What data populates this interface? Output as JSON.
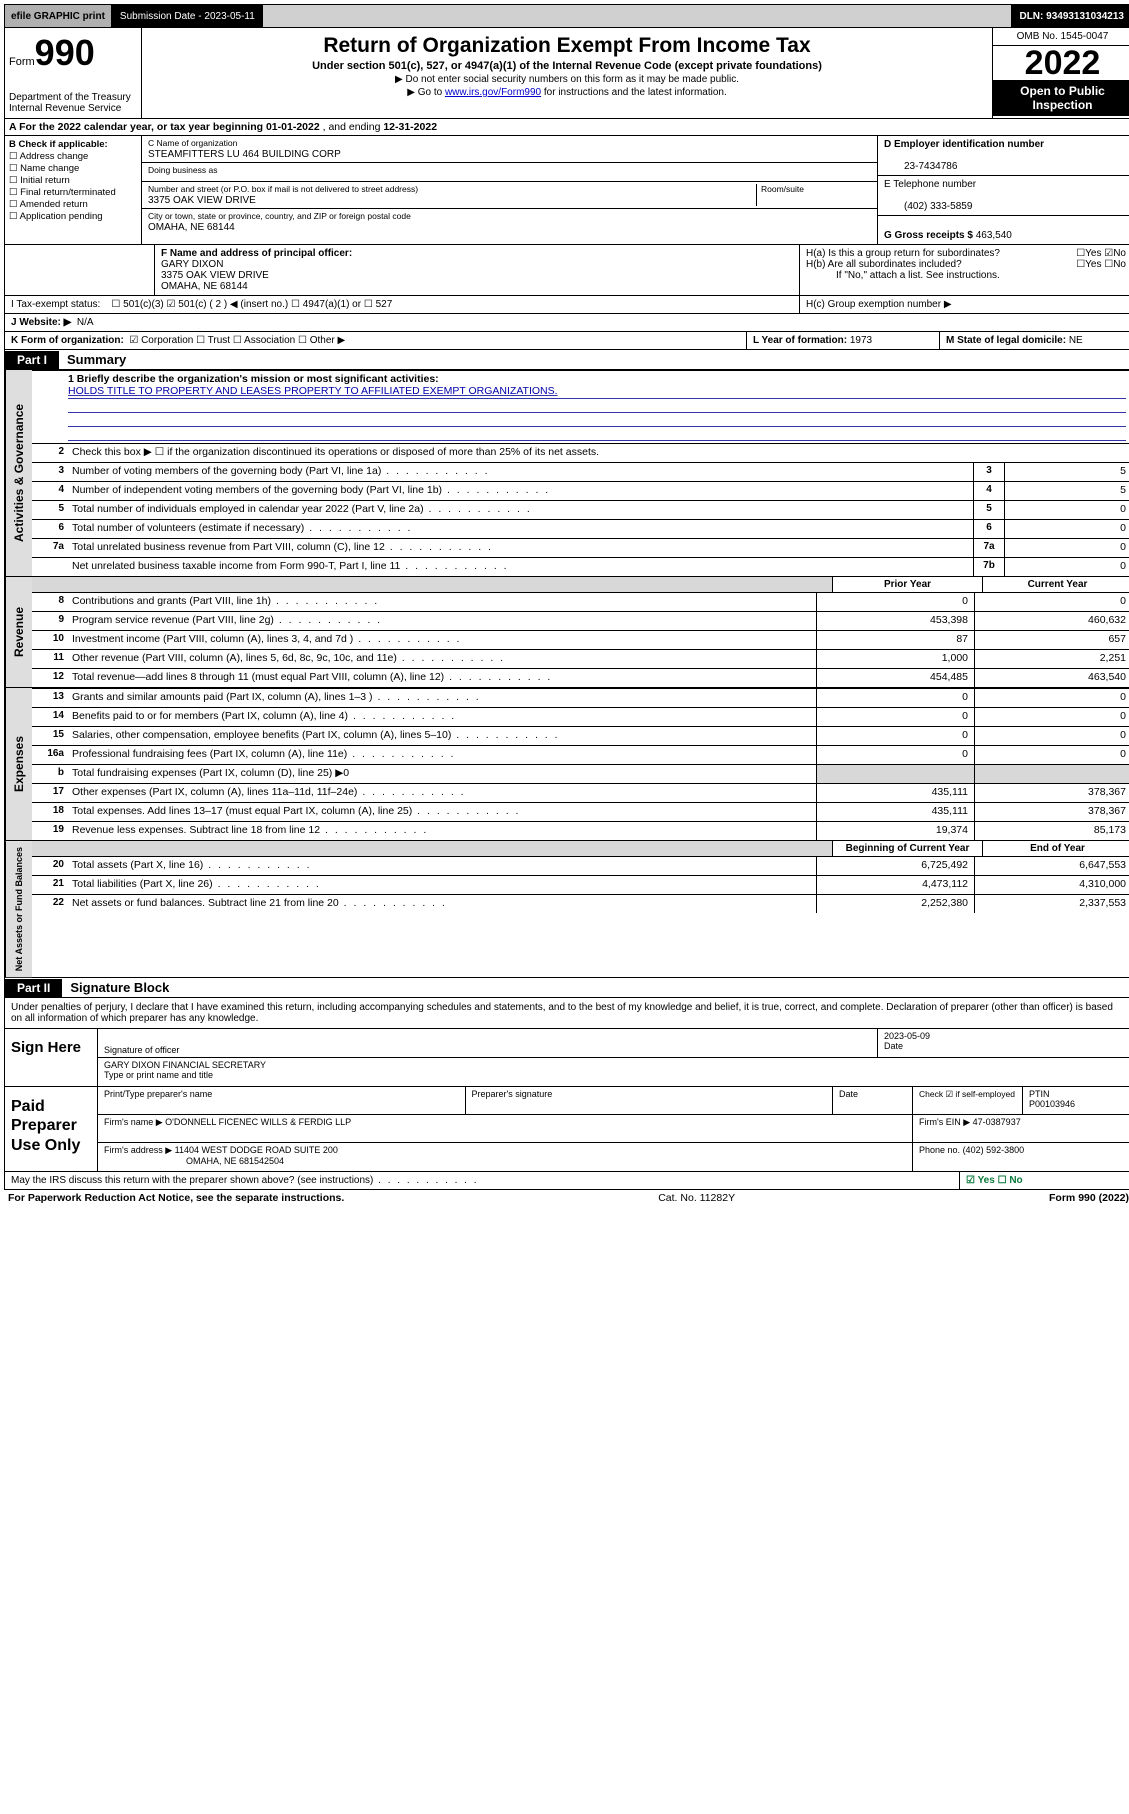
{
  "topbar": {
    "efile": "efile GRAPHIC print",
    "subLabel": "Submission Date - 2023-05-11",
    "dln": "DLN: 93493131034213"
  },
  "header": {
    "formWord": "Form",
    "formNum": "990",
    "dept": "Department of the Treasury",
    "irs": "Internal Revenue Service",
    "title": "Return of Organization Exempt From Income Tax",
    "sub": "Under section 501(c), 527, or 4947(a)(1) of the Internal Revenue Code (except private foundations)",
    "note1": "▶ Do not enter social security numbers on this form as it may be made public.",
    "note2a": "▶ Go to ",
    "note2link": "www.irs.gov/Form990",
    "note2b": " for instructions and the latest information.",
    "omb": "OMB No. 1545-0047",
    "year": "2022",
    "open": "Open to Public Inspection"
  },
  "rowA": {
    "prefix": "A For the 2022 calendar year, or tax year beginning ",
    "begin": "01-01-2022",
    "mid": " , and ending ",
    "end": "12-31-2022"
  },
  "B": {
    "head": "B Check if applicable:",
    "items": [
      "Address change",
      "Name change",
      "Initial return",
      "Final return/terminated",
      "Amended return",
      "Application pending"
    ]
  },
  "C": {
    "nameLabel": "C Name of organization",
    "name": "STEAMFITTERS LU 464 BUILDING CORP",
    "dbaLabel": "Doing business as",
    "dba": "",
    "addrLabel": "Number and street (or P.O. box if mail is not delivered to street address)",
    "roomLabel": "Room/suite",
    "addr": "3375 OAK VIEW DRIVE",
    "cityLabel": "City or town, state or province, country, and ZIP or foreign postal code",
    "city": "OMAHA, NE  68144"
  },
  "D": {
    "label": "D Employer identification number",
    "val": "23-7434786"
  },
  "E": {
    "label": "E Telephone number",
    "val": "(402) 333-5859"
  },
  "G": {
    "label": "G Gross receipts $",
    "val": "463,540"
  },
  "F": {
    "label": "F Name and address of principal officer:",
    "name": "GARY DIXON",
    "addr1": "3375 OAK VIEW DRIVE",
    "addr2": "OMAHA, NE  68144"
  },
  "H": {
    "a": "H(a)  Is this a group return for subordinates?",
    "aAns": "☐Yes  ☑No",
    "b": "H(b)  Are all subordinates included?",
    "bAns": "☐Yes  ☐No",
    "bNote": "If \"No,\" attach a list. See instructions.",
    "c": "H(c)  Group exemption number ▶"
  },
  "I": {
    "label": "I   Tax-exempt status:",
    "opts": "☐ 501(c)(3)   ☑ 501(c) ( 2 ) ◀ (insert no.)   ☐ 4947(a)(1) or   ☐ 527"
  },
  "J": {
    "label": "J   Website: ▶",
    "val": "N/A"
  },
  "K": {
    "label": "K Form of organization:",
    "opts": "☑ Corporation  ☐ Trust  ☐ Association  ☐ Other ▶"
  },
  "L": {
    "label": "L Year of formation:",
    "val": "1973"
  },
  "M": {
    "label": "M State of legal domicile:",
    "val": "NE"
  },
  "part1": {
    "tag": "Part I",
    "title": "Summary"
  },
  "summary": {
    "l1label": "1  Briefly describe the organization's mission or most significant activities:",
    "l1text": "HOLDS TITLE TO PROPERTY AND LEASES PROPERTY TO AFFILIATED EXEMPT ORGANIZATIONS.",
    "l2": "Check this box ▶ ☐  if the organization discontinued its operations or disposed of more than 25% of its net assets.",
    "lines_single": [
      {
        "n": "3",
        "d": "Number of voting members of the governing body (Part VI, line 1a)",
        "b": "3",
        "v": "5"
      },
      {
        "n": "4",
        "d": "Number of independent voting members of the governing body (Part VI, line 1b)",
        "b": "4",
        "v": "5"
      },
      {
        "n": "5",
        "d": "Total number of individuals employed in calendar year 2022 (Part V, line 2a)",
        "b": "5",
        "v": "0"
      },
      {
        "n": "6",
        "d": "Total number of volunteers (estimate if necessary)",
        "b": "6",
        "v": "0"
      },
      {
        "n": "7a",
        "d": "Total unrelated business revenue from Part VIII, column (C), line 12",
        "b": "7a",
        "v": "0"
      },
      {
        "n": "",
        "d": "Net unrelated business taxable income from Form 990-T, Part I, line 11",
        "b": "7b",
        "v": "0"
      }
    ],
    "colhead": {
      "prior": "Prior Year",
      "curr": "Current Year"
    },
    "revenue": [
      {
        "n": "8",
        "d": "Contributions and grants (Part VIII, line 1h)",
        "p": "0",
        "c": "0"
      },
      {
        "n": "9",
        "d": "Program service revenue (Part VIII, line 2g)",
        "p": "453,398",
        "c": "460,632"
      },
      {
        "n": "10",
        "d": "Investment income (Part VIII, column (A), lines 3, 4, and 7d )",
        "p": "87",
        "c": "657"
      },
      {
        "n": "11",
        "d": "Other revenue (Part VIII, column (A), lines 5, 6d, 8c, 9c, 10c, and 11e)",
        "p": "1,000",
        "c": "2,251"
      },
      {
        "n": "12",
        "d": "Total revenue—add lines 8 through 11 (must equal Part VIII, column (A), line 12)",
        "p": "454,485",
        "c": "463,540"
      }
    ],
    "expenses": [
      {
        "n": "13",
        "d": "Grants and similar amounts paid (Part IX, column (A), lines 1–3 )",
        "p": "0",
        "c": "0"
      },
      {
        "n": "14",
        "d": "Benefits paid to or for members (Part IX, column (A), line 4)",
        "p": "0",
        "c": "0"
      },
      {
        "n": "15",
        "d": "Salaries, other compensation, employee benefits (Part IX, column (A), lines 5–10)",
        "p": "0",
        "c": "0"
      },
      {
        "n": "16a",
        "d": "Professional fundraising fees (Part IX, column (A), line 11e)",
        "p": "0",
        "c": "0"
      },
      {
        "n": "b",
        "d": "Total fundraising expenses (Part IX, column (D), line 25) ▶0",
        "p": "",
        "c": "",
        "shade": true
      },
      {
        "n": "17",
        "d": "Other expenses (Part IX, column (A), lines 11a–11d, 11f–24e)",
        "p": "435,111",
        "c": "378,367"
      },
      {
        "n": "18",
        "d": "Total expenses. Add lines 13–17 (must equal Part IX, column (A), line 25)",
        "p": "435,111",
        "c": "378,367"
      },
      {
        "n": "19",
        "d": "Revenue less expenses. Subtract line 18 from line 12",
        "p": "19,374",
        "c": "85,173"
      }
    ],
    "colhead2": {
      "prior": "Beginning of Current Year",
      "curr": "End of Year"
    },
    "net": [
      {
        "n": "20",
        "d": "Total assets (Part X, line 16)",
        "p": "6,725,492",
        "c": "6,647,553"
      },
      {
        "n": "21",
        "d": "Total liabilities (Part X, line 26)",
        "p": "4,473,112",
        "c": "4,310,000"
      },
      {
        "n": "22",
        "d": "Net assets or fund balances. Subtract line 21 from line 20",
        "p": "2,252,380",
        "c": "2,337,553"
      }
    ]
  },
  "sideLabels": {
    "gov": "Activities & Governance",
    "rev": "Revenue",
    "exp": "Expenses",
    "net": "Net Assets or Fund Balances"
  },
  "part2": {
    "tag": "Part II",
    "title": "Signature Block"
  },
  "sigText": "Under penalties of perjury, I declare that I have examined this return, including accompanying schedules and statements, and to the best of my knowledge and belief, it is true, correct, and complete. Declaration of preparer (other than officer) is based on all information of which preparer has any knowledge.",
  "sign": {
    "here": "Sign Here",
    "sigOfficer": "Signature of officer",
    "date": "2023-05-09",
    "dateLabel": "Date",
    "typed": "GARY DIXON  FINANCIAL SECRETARY",
    "typedLabel": "Type or print name and title"
  },
  "paid": {
    "label": "Paid Preparer Use Only",
    "h1": "Print/Type preparer's name",
    "h2": "Preparer's signature",
    "h3": "Date",
    "h4a": "Check ☑ if self-employed",
    "h4b": "PTIN",
    "ptin": "P00103946",
    "firmNameLabel": "Firm's name    ▶",
    "firmName": "O'DONNELL FICENEC WILLS & FERDIG LLP",
    "firmEinLabel": "Firm's EIN ▶",
    "firmEin": "47-0387937",
    "firmAddrLabel": "Firm's address ▶",
    "firmAddr1": "11404 WEST DODGE ROAD SUITE 200",
    "firmAddr2": "OMAHA, NE  681542504",
    "phoneLabel": "Phone no.",
    "phone": "(402) 592-3800"
  },
  "may": {
    "text": "May the IRS discuss this return with the preparer shown above? (see instructions)",
    "ans": "☑ Yes   ☐ No"
  },
  "footer": {
    "left": "For Paperwork Reduction Act Notice, see the separate instructions.",
    "mid": "Cat. No. 11282Y",
    "right": "Form 990 (2022)"
  }
}
